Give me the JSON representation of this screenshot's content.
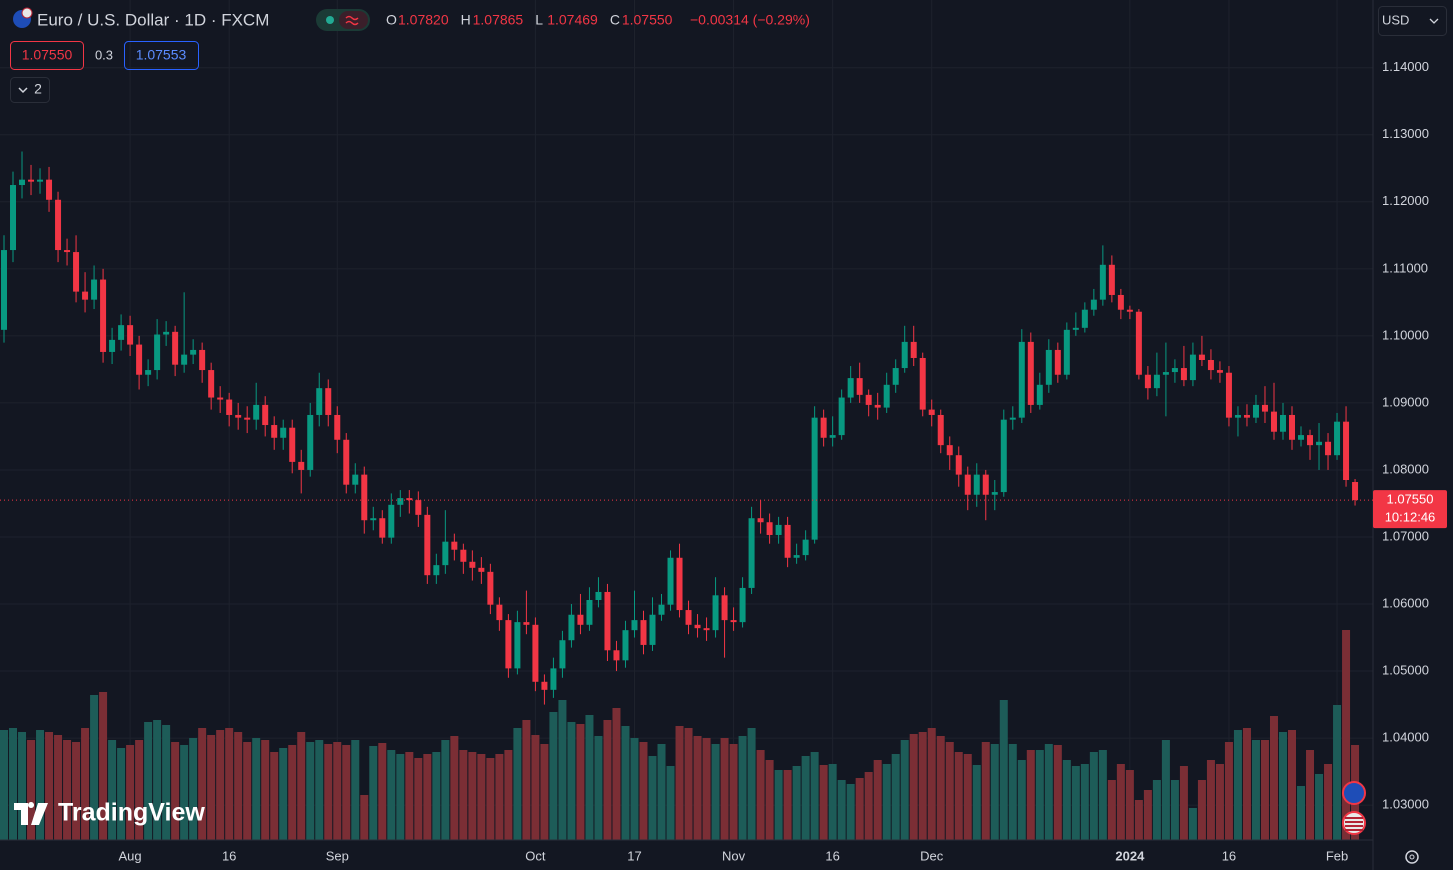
{
  "header": {
    "title": "Euro / U.S. Dollar · 1D · FXCM",
    "ohlc": [
      {
        "label": "O",
        "value": "1.07820"
      },
      {
        "label": "H",
        "value": "1.07865"
      },
      {
        "label": "L",
        "value": "1.07469"
      },
      {
        "label": "C",
        "value": "1.07550"
      }
    ],
    "change": "−0.00314 (−0.29%)"
  },
  "order_boxes": {
    "bid": "1.07550",
    "spread": "0.3",
    "ask": "1.07553"
  },
  "indicators_count": "2",
  "currency": "USD",
  "last_price": {
    "label": "1.07550",
    "countdown": "10:12:46"
  },
  "logo": "TradingView",
  "chart_data": {
    "type": "candlestick",
    "up_color": "#089981",
    "down_color": "#f23645",
    "volume_up_color": "#1d5c58",
    "volume_down_color": "#7b2e35",
    "ylim": [
      1.0248,
      1.1501
    ],
    "yticks": [
      {
        "value": 1.03,
        "label": "1.03000"
      },
      {
        "value": 1.04,
        "label": "1.04000"
      },
      {
        "value": 1.05,
        "label": "1.05000"
      },
      {
        "value": 1.06,
        "label": "1.06000"
      },
      {
        "value": 1.07,
        "label": "1.07000"
      },
      {
        "value": 1.08,
        "label": "1.08000"
      },
      {
        "value": 1.09,
        "label": "1.09000"
      },
      {
        "value": 1.1,
        "label": "1.10000"
      },
      {
        "value": 1.11,
        "label": "1.11000"
      },
      {
        "value": 1.12,
        "label": "1.12000"
      },
      {
        "value": 1.13,
        "label": "1.13000"
      },
      {
        "value": 1.14,
        "label": "1.14000"
      }
    ],
    "xticks": [
      {
        "value": 14,
        "label": "Aug"
      },
      {
        "value": 25,
        "label": "16"
      },
      {
        "value": 37,
        "label": "Sep"
      },
      {
        "value": 59,
        "label": "Oct"
      },
      {
        "value": 70,
        "label": "17"
      },
      {
        "value": 81,
        "label": "Nov"
      },
      {
        "value": 92,
        "label": "16"
      },
      {
        "value": 103,
        "label": "Dec"
      },
      {
        "value": 125,
        "label": "2024"
      },
      {
        "value": 136,
        "label": "16"
      },
      {
        "value": 148,
        "label": "Feb"
      }
    ],
    "grid": true,
    "ohlc": [
      [
        1.1009,
        1.115,
        1.099,
        1.1128
      ],
      [
        1.1128,
        1.1245,
        1.111,
        1.1225
      ],
      [
        1.1225,
        1.1275,
        1.1205,
        1.1233
      ],
      [
        1.1233,
        1.1255,
        1.121,
        1.123
      ],
      [
        1.123,
        1.125,
        1.1212,
        1.1233
      ],
      [
        1.1233,
        1.1252,
        1.1185,
        1.1203
      ],
      [
        1.1203,
        1.1215,
        1.111,
        1.1128
      ],
      [
        1.1128,
        1.1145,
        1.1105,
        1.1125
      ],
      [
        1.1125,
        1.115,
        1.105,
        1.1066
      ],
      [
        1.1066,
        1.1095,
        1.1035,
        1.1054
      ],
      [
        1.1054,
        1.1105,
        1.104,
        1.1084
      ],
      [
        1.1084,
        1.11,
        1.096,
        1.0976
      ],
      [
        1.0976,
        1.1012,
        1.0958,
        1.0994
      ],
      [
        1.0994,
        1.1032,
        1.0978,
        1.1016
      ],
      [
        1.1016,
        1.103,
        1.097,
        1.0987
      ],
      [
        1.0987,
        1.1,
        1.092,
        1.0942
      ],
      [
        1.0942,
        1.0965,
        1.0925,
        1.0949
      ],
      [
        1.0949,
        1.1025,
        1.0935,
        1.1002
      ],
      [
        1.1002,
        1.1022,
        1.0985,
        1.1006
      ],
      [
        1.1006,
        1.1015,
        1.094,
        1.0957
      ],
      [
        1.0957,
        1.1065,
        1.0945,
        1.0972
      ],
      [
        1.0972,
        1.0995,
        1.0958,
        1.0979
      ],
      [
        1.0979,
        1.099,
        1.093,
        1.0949
      ],
      [
        1.0949,
        1.096,
        1.089,
        1.0908
      ],
      [
        1.0908,
        1.0925,
        1.0885,
        1.0905
      ],
      [
        1.0905,
        1.0915,
        1.0865,
        1.0882
      ],
      [
        1.0882,
        1.09,
        1.086,
        1.0878
      ],
      [
        1.0878,
        1.0895,
        1.0855,
        1.0875
      ],
      [
        1.0875,
        1.093,
        1.086,
        1.0897
      ],
      [
        1.0897,
        1.091,
        1.085,
        1.0867
      ],
      [
        1.0867,
        1.088,
        1.083,
        1.0848
      ],
      [
        1.0848,
        1.0875,
        1.083,
        1.0863
      ],
      [
        1.0863,
        1.0875,
        1.0795,
        1.0812
      ],
      [
        1.0812,
        1.083,
        1.0765,
        1.08
      ],
      [
        1.08,
        1.09,
        1.079,
        1.0882
      ],
      [
        1.0882,
        1.0945,
        1.0865,
        1.0922
      ],
      [
        1.0922,
        1.0935,
        1.0865,
        1.0882
      ],
      [
        1.0882,
        1.0895,
        1.0825,
        1.0845
      ],
      [
        1.0845,
        1.0855,
        1.0765,
        1.0778
      ],
      [
        1.0778,
        1.081,
        1.0765,
        1.0793
      ],
      [
        1.0793,
        1.0805,
        1.0705,
        1.0725
      ],
      [
        1.0725,
        1.0745,
        1.071,
        1.0728
      ],
      [
        1.0728,
        1.074,
        1.069,
        1.0699
      ],
      [
        1.0699,
        1.0765,
        1.069,
        1.0748
      ],
      [
        1.0748,
        1.077,
        1.073,
        1.0758
      ],
      [
        1.0758,
        1.077,
        1.0735,
        1.0755
      ],
      [
        1.0755,
        1.0768,
        1.0715,
        1.0733
      ],
      [
        1.0733,
        1.0745,
        1.063,
        1.0643
      ],
      [
        1.0643,
        1.0675,
        1.063,
        1.0658
      ],
      [
        1.0658,
        1.074,
        1.0645,
        1.0693
      ],
      [
        1.0693,
        1.0705,
        1.0665,
        1.0681
      ],
      [
        1.0681,
        1.069,
        1.0645,
        1.0663
      ],
      [
        1.0663,
        1.068,
        1.0635,
        1.0654
      ],
      [
        1.0654,
        1.067,
        1.063,
        1.0648
      ],
      [
        1.0648,
        1.066,
        1.0585,
        1.0599
      ],
      [
        1.0599,
        1.061,
        1.056,
        1.0576
      ],
      [
        1.0576,
        1.0585,
        1.049,
        1.0504
      ],
      [
        1.0504,
        1.059,
        1.0495,
        1.0573
      ],
      [
        1.0573,
        1.062,
        1.0555,
        1.0569
      ],
      [
        1.0569,
        1.058,
        1.047,
        1.0484
      ],
      [
        1.0484,
        1.0495,
        1.045,
        1.0472
      ],
      [
        1.0472,
        1.052,
        1.046,
        1.0504
      ],
      [
        1.0504,
        1.056,
        1.049,
        1.0546
      ],
      [
        1.0546,
        1.06,
        1.0535,
        1.0584
      ],
      [
        1.0584,
        1.0615,
        1.0555,
        1.0569
      ],
      [
        1.0569,
        1.0625,
        1.056,
        1.0606
      ],
      [
        1.0606,
        1.064,
        1.0595,
        1.0618
      ],
      [
        1.0618,
        1.063,
        1.0515,
        1.0531
      ],
      [
        1.0531,
        1.0545,
        1.05,
        1.0516
      ],
      [
        1.0516,
        1.0575,
        1.0505,
        1.0561
      ],
      [
        1.0561,
        1.062,
        1.055,
        1.0576
      ],
      [
        1.0576,
        1.059,
        1.0525,
        1.0539
      ],
      [
        1.0539,
        1.061,
        1.053,
        1.0584
      ],
      [
        1.0584,
        1.0615,
        1.0575,
        1.0599
      ],
      [
        1.0599,
        1.068,
        1.059,
        1.0669
      ],
      [
        1.0669,
        1.069,
        1.058,
        1.0591
      ],
      [
        1.0591,
        1.0605,
        1.0555,
        1.0569
      ],
      [
        1.0569,
        1.0585,
        1.055,
        1.0564
      ],
      [
        1.0564,
        1.058,
        1.0545,
        1.0561
      ],
      [
        1.0561,
        1.064,
        1.055,
        1.0613
      ],
      [
        1.0613,
        1.0625,
        1.052,
        1.0576
      ],
      [
        1.0576,
        1.0595,
        1.056,
        1.0573
      ],
      [
        1.0573,
        1.064,
        1.0565,
        1.0624
      ],
      [
        1.0624,
        1.0745,
        1.0615,
        1.0728
      ],
      [
        1.0728,
        1.0755,
        1.0705,
        1.0722
      ],
      [
        1.0722,
        1.0735,
        1.069,
        1.0703
      ],
      [
        1.0703,
        1.073,
        1.069,
        1.0718
      ],
      [
        1.0718,
        1.073,
        1.0655,
        1.0669
      ],
      [
        1.0669,
        1.069,
        1.066,
        1.0673
      ],
      [
        1.0673,
        1.071,
        1.0665,
        1.0696
      ],
      [
        1.0696,
        1.0895,
        1.069,
        1.0878
      ],
      [
        1.0878,
        1.089,
        1.0835,
        1.0848
      ],
      [
        1.0848,
        1.088,
        1.0835,
        1.0852
      ],
      [
        1.0852,
        1.092,
        1.0845,
        1.0908
      ],
      [
        1.0908,
        1.0955,
        1.09,
        1.0937
      ],
      [
        1.0937,
        1.096,
        1.09,
        1.0912
      ],
      [
        1.0912,
        1.092,
        1.088,
        1.0897
      ],
      [
        1.0897,
        1.0915,
        1.0875,
        1.0893
      ],
      [
        1.0893,
        1.0945,
        1.0885,
        1.0927
      ],
      [
        1.0927,
        1.0965,
        1.0915,
        1.0952
      ],
      [
        1.0952,
        1.1015,
        1.0945,
        1.0991
      ],
      [
        1.0991,
        1.1015,
        1.0955,
        1.0967
      ],
      [
        1.0967,
        1.0975,
        1.088,
        1.089
      ],
      [
        1.089,
        1.0905,
        1.0865,
        1.0882
      ],
      [
        1.0882,
        1.089,
        1.0825,
        1.0837
      ],
      [
        1.0837,
        1.085,
        1.08,
        1.0822
      ],
      [
        1.0822,
        1.0835,
        1.0775,
        1.0793
      ],
      [
        1.0793,
        1.0805,
        1.074,
        1.0763
      ],
      [
        1.0763,
        1.081,
        1.0745,
        1.0793
      ],
      [
        1.0793,
        1.08,
        1.0725,
        1.0763
      ],
      [
        1.0763,
        1.0785,
        1.074,
        1.0767
      ],
      [
        1.0767,
        1.089,
        1.076,
        1.0875
      ],
      [
        1.0875,
        1.0895,
        1.086,
        1.0878
      ],
      [
        1.0878,
        1.101,
        1.087,
        1.0991
      ],
      [
        1.0991,
        1.1005,
        1.0885,
        1.0897
      ],
      [
        1.0897,
        1.0945,
        1.089,
        1.0927
      ],
      [
        1.0927,
        1.0995,
        1.0915,
        1.0979
      ],
      [
        1.0979,
        1.099,
        1.093,
        1.0942
      ],
      [
        1.0942,
        1.102,
        1.0935,
        1.1009
      ],
      [
        1.1009,
        1.1035,
        1.1,
        1.1012
      ],
      [
        1.1012,
        1.105,
        1.1005,
        1.1039
      ],
      [
        1.1039,
        1.107,
        1.103,
        1.1054
      ],
      [
        1.1054,
        1.1135,
        1.1045,
        1.1106
      ],
      [
        1.1106,
        1.112,
        1.105,
        1.1061
      ],
      [
        1.1061,
        1.107,
        1.1025,
        1.1039
      ],
      [
        1.1039,
        1.1045,
        1.1025,
        1.1036
      ],
      [
        1.1036,
        1.104,
        1.0935,
        1.0942
      ],
      [
        1.0942,
        1.0955,
        1.0905,
        1.0922
      ],
      [
        1.0922,
        1.0975,
        1.091,
        1.0942
      ],
      [
        1.0942,
        1.099,
        1.088,
        1.0946
      ],
      [
        1.0946,
        1.0965,
        1.093,
        1.0952
      ],
      [
        1.0952,
        1.0985,
        1.0925,
        1.0934
      ],
      [
        1.0934,
        1.099,
        1.0925,
        1.0972
      ],
      [
        1.0972,
        1.1,
        1.0955,
        1.0964
      ],
      [
        1.0964,
        1.098,
        1.0935,
        1.0949
      ],
      [
        1.0949,
        1.0962,
        1.093,
        1.0945
      ],
      [
        1.0945,
        1.0955,
        1.0865,
        1.0878
      ],
      [
        1.0878,
        1.0895,
        1.085,
        1.0882
      ],
      [
        1.0882,
        1.0898,
        1.0865,
        1.0878
      ],
      [
        1.0878,
        1.0912,
        1.087,
        1.0897
      ],
      [
        1.0897,
        1.0925,
        1.087,
        1.0887
      ],
      [
        1.0887,
        1.093,
        1.0845,
        1.0857
      ],
      [
        1.0857,
        1.09,
        1.0845,
        1.0882
      ],
      [
        1.0882,
        1.0895,
        1.083,
        1.0845
      ],
      [
        1.0845,
        1.0865,
        1.0835,
        1.0852
      ],
      [
        1.0852,
        1.086,
        1.0815,
        1.0837
      ],
      [
        1.0837,
        1.087,
        1.08,
        1.0842
      ],
      [
        1.0842,
        1.0855,
        1.08,
        1.0822
      ],
      [
        1.0822,
        1.0885,
        1.0815,
        1.0872
      ],
      [
        1.0872,
        1.0895,
        1.0775,
        1.0785
      ],
      [
        1.0782,
        1.07865,
        1.07469,
        1.0755
      ]
    ],
    "volume": [
      110,
      112,
      108,
      100,
      110,
      108,
      105,
      100,
      98,
      112,
      145,
      148,
      100,
      92,
      95,
      100,
      118,
      120,
      115,
      98,
      95,
      102,
      112,
      105,
      110,
      112,
      108,
      98,
      102,
      100,
      88,
      92,
      95,
      108,
      98,
      100,
      96,
      98,
      95,
      100,
      45,
      94,
      97,
      90,
      86,
      88,
      82,
      86,
      88,
      100,
      104,
      90,
      88,
      86,
      82,
      86,
      90,
      112,
      120,
      105,
      96,
      128,
      140,
      118,
      116,
      125,
      104,
      120,
      132,
      114,
      102,
      98,
      84,
      96,
      74,
      114,
      112,
      104,
      102,
      96,
      102,
      96,
      104,
      112,
      90,
      80,
      70,
      70,
      74,
      84,
      88,
      75,
      76,
      60,
      56,
      62,
      68,
      80,
      76,
      86,
      100,
      106,
      108,
      112,
      104,
      98,
      88,
      86,
      75,
      98,
      96,
      140,
      96,
      80,
      90,
      90,
      96,
      95,
      80,
      74,
      76,
      88,
      90,
      60,
      76,
      70,
      40,
      50,
      60,
      100,
      60,
      74,
      32,
      60,
      80,
      76,
      98,
      110,
      112,
      100,
      100,
      124,
      108,
      110,
      54,
      90,
      66,
      76,
      135,
      210,
      95
    ]
  }
}
